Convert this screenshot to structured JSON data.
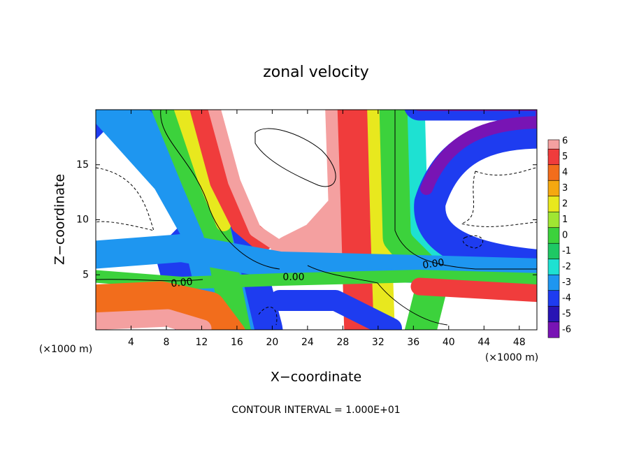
{
  "chart_data": {
    "type": "contour",
    "title": "zonal velocity",
    "xlabel": "X−coordinate",
    "ylabel": "Z−coordinate",
    "x_unit_label": "(×1000 m)",
    "y_unit_label": "(×1000 m)",
    "footer": "CONTOUR INTERVAL = 1.000E+01",
    "xlim": [
      0,
      50
    ],
    "ylim": [
      0,
      20
    ],
    "xticks": [
      4,
      8,
      12,
      16,
      20,
      24,
      28,
      32,
      36,
      40,
      44,
      48
    ],
    "yticks": [
      5,
      10,
      15
    ],
    "colorbar": {
      "levels": [
        6,
        5,
        4,
        3,
        2,
        1,
        0,
        -1,
        -2,
        -3,
        -4,
        -5,
        -6
      ],
      "colors": [
        "#f4a0a0",
        "#f03c3c",
        "#f26d1c",
        "#f5a810",
        "#e8e81e",
        "#a0e632",
        "#3cd23c",
        "#1ec864",
        "#1ee1d2",
        "#1e96f0",
        "#1e3cf0",
        "#2814b4",
        "#7814b4"
      ]
    },
    "contour_labels": [
      {
        "value": 0,
        "label": "0.00"
      },
      {
        "value": 0,
        "label": "0.00"
      },
      {
        "value": 0,
        "label": "0.00"
      }
    ]
  }
}
